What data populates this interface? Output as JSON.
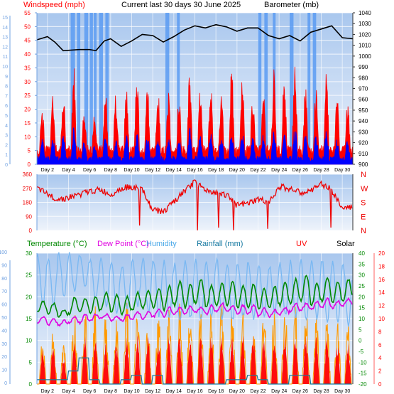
{
  "header": {
    "windspeed_label": "Windspeed (mph)",
    "title": "Current last 30 days 30 June 2025",
    "barometer_label": "Barometer (mb)"
  },
  "legend2": {
    "temperature_label": "Temperature (°C)",
    "dew_point_label": "Dew Point (°C)",
    "humidity_label": "Humidity",
    "rainfall_label": "Rainfall (mm)",
    "uv_label": "UV",
    "solar_label": "Solar"
  },
  "days": [
    "Day 2",
    "Day 4",
    "Day 6",
    "Day 8",
    "Day 10",
    "Day 12",
    "Day 14",
    "Day 16",
    "Day 18",
    "Day 20",
    "Day 22",
    "Day 24",
    "Day 26",
    "Day 28",
    "Day 30"
  ],
  "colors": {
    "plot_top": "#a9c7ee",
    "plot_bottom": "#eef3fb",
    "grid": "#ffffff",
    "wind_gust": "#ff0000",
    "wind_avg": "#0000ff",
    "barometer": "#000000",
    "bar_fill": "#5b9bf2",
    "direction": "#ee0000",
    "temperature": "#008800",
    "dew_point": "#e000e0",
    "humidity": "#7ab8f2",
    "rainfall": "#1478a0",
    "uv": "#ff0000",
    "solar": "#ff9900"
  },
  "chart_data": [
    {
      "type": "line",
      "series": [
        {
          "name": "Windspeed (mph)",
          "axis": "left",
          "ylim": [
            0,
            55
          ],
          "ticks": [
            0,
            5,
            10,
            15,
            20,
            25,
            30,
            35,
            40,
            45,
            50,
            55
          ],
          "daily_peak_gust": [
            23,
            28,
            27,
            38,
            20,
            20,
            30,
            26,
            28,
            33,
            30,
            28,
            27,
            25,
            34,
            29,
            30,
            29,
            36,
            31,
            26,
            28,
            36,
            33,
            38,
            30,
            30,
            33,
            27,
            25
          ],
          "daily_mean": [
            7,
            8,
            9,
            10,
            6,
            5,
            9,
            7,
            8,
            9,
            8,
            8,
            7,
            7,
            10,
            8,
            9,
            8,
            10,
            9,
            7,
            8,
            10,
            9,
            11,
            8,
            8,
            9,
            7,
            6
          ]
        },
        {
          "name": "Barometer (mb)",
          "axis": "right",
          "ylim": [
            900,
            1040
          ],
          "ticks": [
            900,
            910,
            920,
            930,
            940,
            950,
            960,
            970,
            980,
            990,
            1000,
            1010,
            1020,
            1030,
            1040
          ],
          "x_day": [
            1,
            2,
            2.7,
            3.5,
            5,
            6,
            6.6,
            7.4,
            8,
            9,
            10,
            11,
            12,
            13,
            14,
            15,
            16,
            17,
            18,
            19,
            20,
            21,
            22,
            23,
            24,
            25,
            26,
            27,
            28,
            29,
            30,
            31
          ],
          "values": [
            1015,
            1018,
            1013,
            1005,
            1006,
            1006,
            1005,
            1014,
            1016,
            1009,
            1014,
            1020,
            1019,
            1013,
            1018,
            1024,
            1028,
            1026,
            1029,
            1027,
            1023,
            1026,
            1026,
            1019,
            1016,
            1019,
            1014,
            1022,
            1025,
            1028,
            1017,
            1016
          ]
        }
      ],
      "left_axis_mirror_ticks": [
        0,
        1,
        2,
        3,
        4,
        5,
        6,
        7,
        8,
        9,
        10,
        11,
        12,
        13,
        14,
        15
      ],
      "x_tick_labels": [
        "Day 2",
        "Day 4",
        "Day 6",
        "Day 8",
        "Day 10",
        "Day 12",
        "Day 14",
        "Day 16",
        "Day 18",
        "Day 20",
        "Day 22",
        "Day 24",
        "Day 26",
        "Day 28",
        "Day 30"
      ]
    },
    {
      "type": "line",
      "name": "wind direction",
      "ylim": [
        0,
        360
      ],
      "y_ticks": [
        0,
        90,
        180,
        270,
        360
      ],
      "right_labels": [
        "N",
        "W",
        "S",
        "E",
        "N"
      ],
      "x_day": [
        1,
        2,
        3,
        4,
        5,
        6,
        7,
        8,
        9,
        10,
        11,
        12,
        13,
        14,
        15,
        16,
        17,
        18,
        19,
        20,
        21,
        22,
        23,
        24,
        25,
        26,
        27,
        28,
        29,
        30,
        31
      ],
      "values": [
        270,
        230,
        200,
        210,
        230,
        250,
        260,
        230,
        270,
        280,
        260,
        130,
        120,
        180,
        250,
        310,
        260,
        240,
        230,
        160,
        170,
        200,
        180,
        280,
        270,
        240,
        250,
        300,
        260,
        140,
        150
      ]
    },
    {
      "type": "line",
      "series": [
        {
          "name": "Temperature (°C)",
          "daily_max": [
            18,
            17,
            14,
            20,
            19,
            20,
            22,
            21,
            20,
            22,
            23,
            24,
            25,
            27,
            26,
            28,
            25,
            26,
            27,
            25,
            26,
            24,
            25,
            27,
            28,
            30,
            26,
            29,
            27,
            28
          ],
          "daily_min": [
            13,
            12,
            11,
            12,
            13,
            12,
            14,
            13,
            12,
            14,
            15,
            15,
            14,
            16,
            15,
            17,
            15,
            16,
            16,
            15,
            15,
            14,
            15,
            16,
            17,
            18,
            16,
            18,
            17,
            18
          ]
        },
        {
          "name": "Dew Point (°C)",
          "daily_max": [
            11,
            10,
            9,
            11,
            12,
            12,
            12,
            11,
            12,
            13,
            13,
            14,
            15,
            15,
            16,
            15,
            16,
            17,
            16,
            16,
            16,
            15,
            14,
            15,
            17,
            17,
            18,
            19,
            18,
            19
          ],
          "daily_min": [
            8,
            7,
            7,
            8,
            8,
            9,
            10,
            9,
            9,
            10,
            10,
            11,
            11,
            12,
            12,
            13,
            12,
            13,
            13,
            12,
            12,
            11,
            11,
            12,
            13,
            14,
            14,
            15,
            15,
            16
          ]
        },
        {
          "name": "Humidity",
          "daily_max": [
            98,
            96,
            99,
            99,
            99,
            96,
            95,
            92,
            90,
            95,
            95,
            95,
            94,
            92,
            95,
            95,
            95,
            96,
            92,
            92,
            94,
            90,
            90,
            93,
            95,
            95,
            94,
            95,
            93,
            92
          ],
          "daily_min": [
            62,
            60,
            68,
            72,
            75,
            65,
            60,
            55,
            58,
            60,
            55,
            52,
            50,
            48,
            50,
            48,
            52,
            50,
            49,
            52,
            50,
            52,
            55,
            52,
            50,
            48,
            50,
            47,
            48,
            45
          ]
        },
        {
          "name": "Rainfall (mm)",
          "daily_total": [
            1,
            1,
            1,
            3,
            6,
            1,
            0,
            0,
            1,
            2,
            0,
            2,
            0,
            0,
            0,
            0,
            0,
            0,
            1,
            1,
            2,
            1,
            0,
            0,
            2,
            2,
            0,
            0,
            0,
            0
          ]
        },
        {
          "name": "UV",
          "daily_peak": [
            5,
            6,
            4,
            6,
            7,
            7,
            6,
            6,
            7,
            7,
            7,
            6,
            7,
            7,
            7,
            7,
            7,
            7,
            7,
            7,
            7,
            7,
            7,
            7,
            7,
            7,
            7,
            7,
            6,
            6
          ]
        },
        {
          "name": "Solar",
          "daily_peak": [
            400,
            500,
            350,
            700,
            750,
            650,
            600,
            550,
            750,
            700,
            550,
            600,
            650,
            700,
            600,
            650,
            600,
            700,
            650,
            700,
            550,
            650,
            600,
            700,
            650,
            700,
            600,
            650,
            550,
            500
          ]
        }
      ],
      "left_axis_ticks": [
        0,
        5,
        10,
        15,
        20,
        25,
        30
      ],
      "humidity_axis_ticks": [
        0,
        10,
        20,
        30,
        40,
        50,
        60,
        70,
        80,
        90,
        100
      ],
      "temperature_axis_ticks": [
        -20,
        -15,
        -10,
        -5,
        0,
        5,
        10,
        15,
        20,
        25,
        30,
        35,
        40
      ],
      "uv_axis_ticks": [
        0,
        2,
        4,
        6,
        8,
        10,
        12,
        14,
        16,
        18,
        20
      ],
      "x_tick_labels": [
        "Day 2",
        "Day 4",
        "Day 6",
        "Day 8",
        "Day 10",
        "Day 12",
        "Day 14",
        "Day 16",
        "Day 18",
        "Day 20",
        "Day 22",
        "Day 24",
        "Day 26",
        "Day 28",
        "Day 30"
      ]
    }
  ]
}
